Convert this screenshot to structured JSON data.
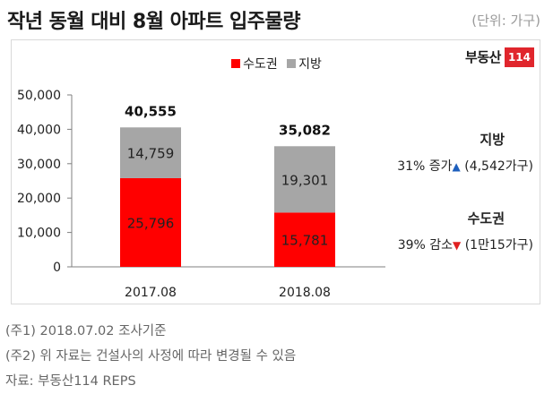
{
  "header": {
    "title": "작년 동월 대비 8월 아파트 입주물량",
    "unit": "(단위: 가구)"
  },
  "logo": {
    "text": "부동산",
    "number": "114"
  },
  "colors": {
    "capital": "#ff0000",
    "regional": "#a6a6a6"
  },
  "chart_data": {
    "type": "bar",
    "stacked": true,
    "categories": [
      "2017.08",
      "2018.08"
    ],
    "series": [
      {
        "name": "수도권",
        "values": [
          25796,
          15781
        ],
        "labels": [
          "25,796",
          "15,781"
        ]
      },
      {
        "name": "지방",
        "values": [
          14759,
          19301
        ],
        "labels": [
          "14,759",
          "19,301"
        ]
      }
    ],
    "totals": [
      40555,
      35082
    ],
    "total_labels": [
      "40,555",
      "35,082"
    ],
    "ylim": [
      0,
      50000
    ],
    "yticks": [
      0,
      10000,
      20000,
      30000,
      40000,
      50000
    ],
    "ytick_labels": [
      "0",
      "10,000",
      "20,000",
      "30,000",
      "40,000",
      "50,000"
    ],
    "legend_position": "top-center",
    "grid": false
  },
  "annotations": {
    "regional": {
      "title": "지방",
      "text": "31% 증가",
      "arrow": "▲",
      "detail": "(4,542가구)"
    },
    "capital": {
      "title": "수도권",
      "text": "39% 감소",
      "arrow": "▼",
      "detail": "(1만15가구)"
    }
  },
  "footnotes": [
    "(주1) 2018.07.02 조사기준",
    "(주2) 위 자료는 건설사의 사정에 따라 변경될 수 있음",
    "자료: 부동산114 REPS"
  ]
}
